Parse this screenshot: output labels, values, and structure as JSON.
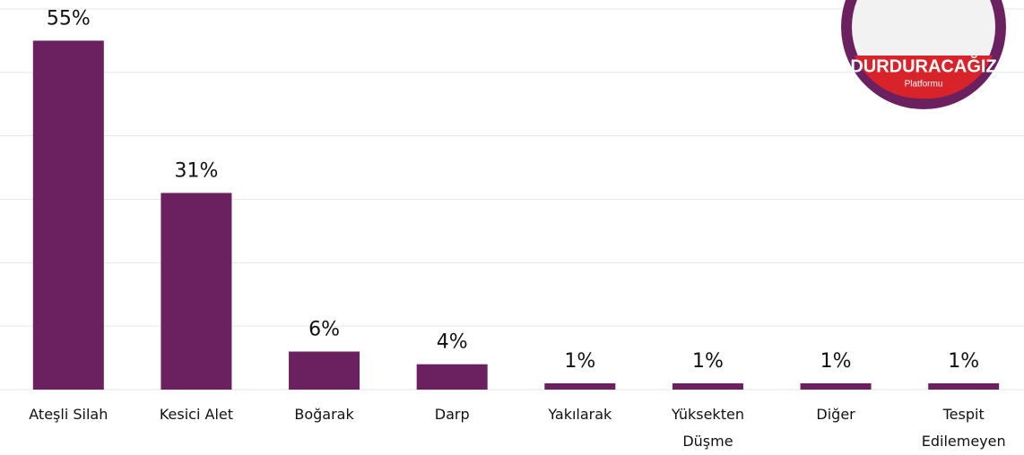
{
  "chart_data": {
    "type": "bar",
    "categories": [
      "Ateşli Silah",
      "Kesici Alet",
      "Boğarak",
      "Darp",
      "Yakılarak",
      "Yüksekten Düşme",
      "Diğer",
      "Tespit Edilemeyen"
    ],
    "values": [
      55,
      31,
      6,
      4,
      1,
      1,
      1,
      1
    ],
    "value_labels": [
      "55%",
      "31%",
      "6%",
      "4%",
      "1%",
      "1%",
      "1%",
      "1%"
    ],
    "color": "#6b2160",
    "ylim": [
      0,
      60
    ],
    "yticks": [
      0,
      10,
      20,
      30,
      40,
      50,
      60
    ],
    "grid": true
  },
  "logo": {
    "title": "DURDURACAĞIZ",
    "subtitle": "Platformu"
  }
}
